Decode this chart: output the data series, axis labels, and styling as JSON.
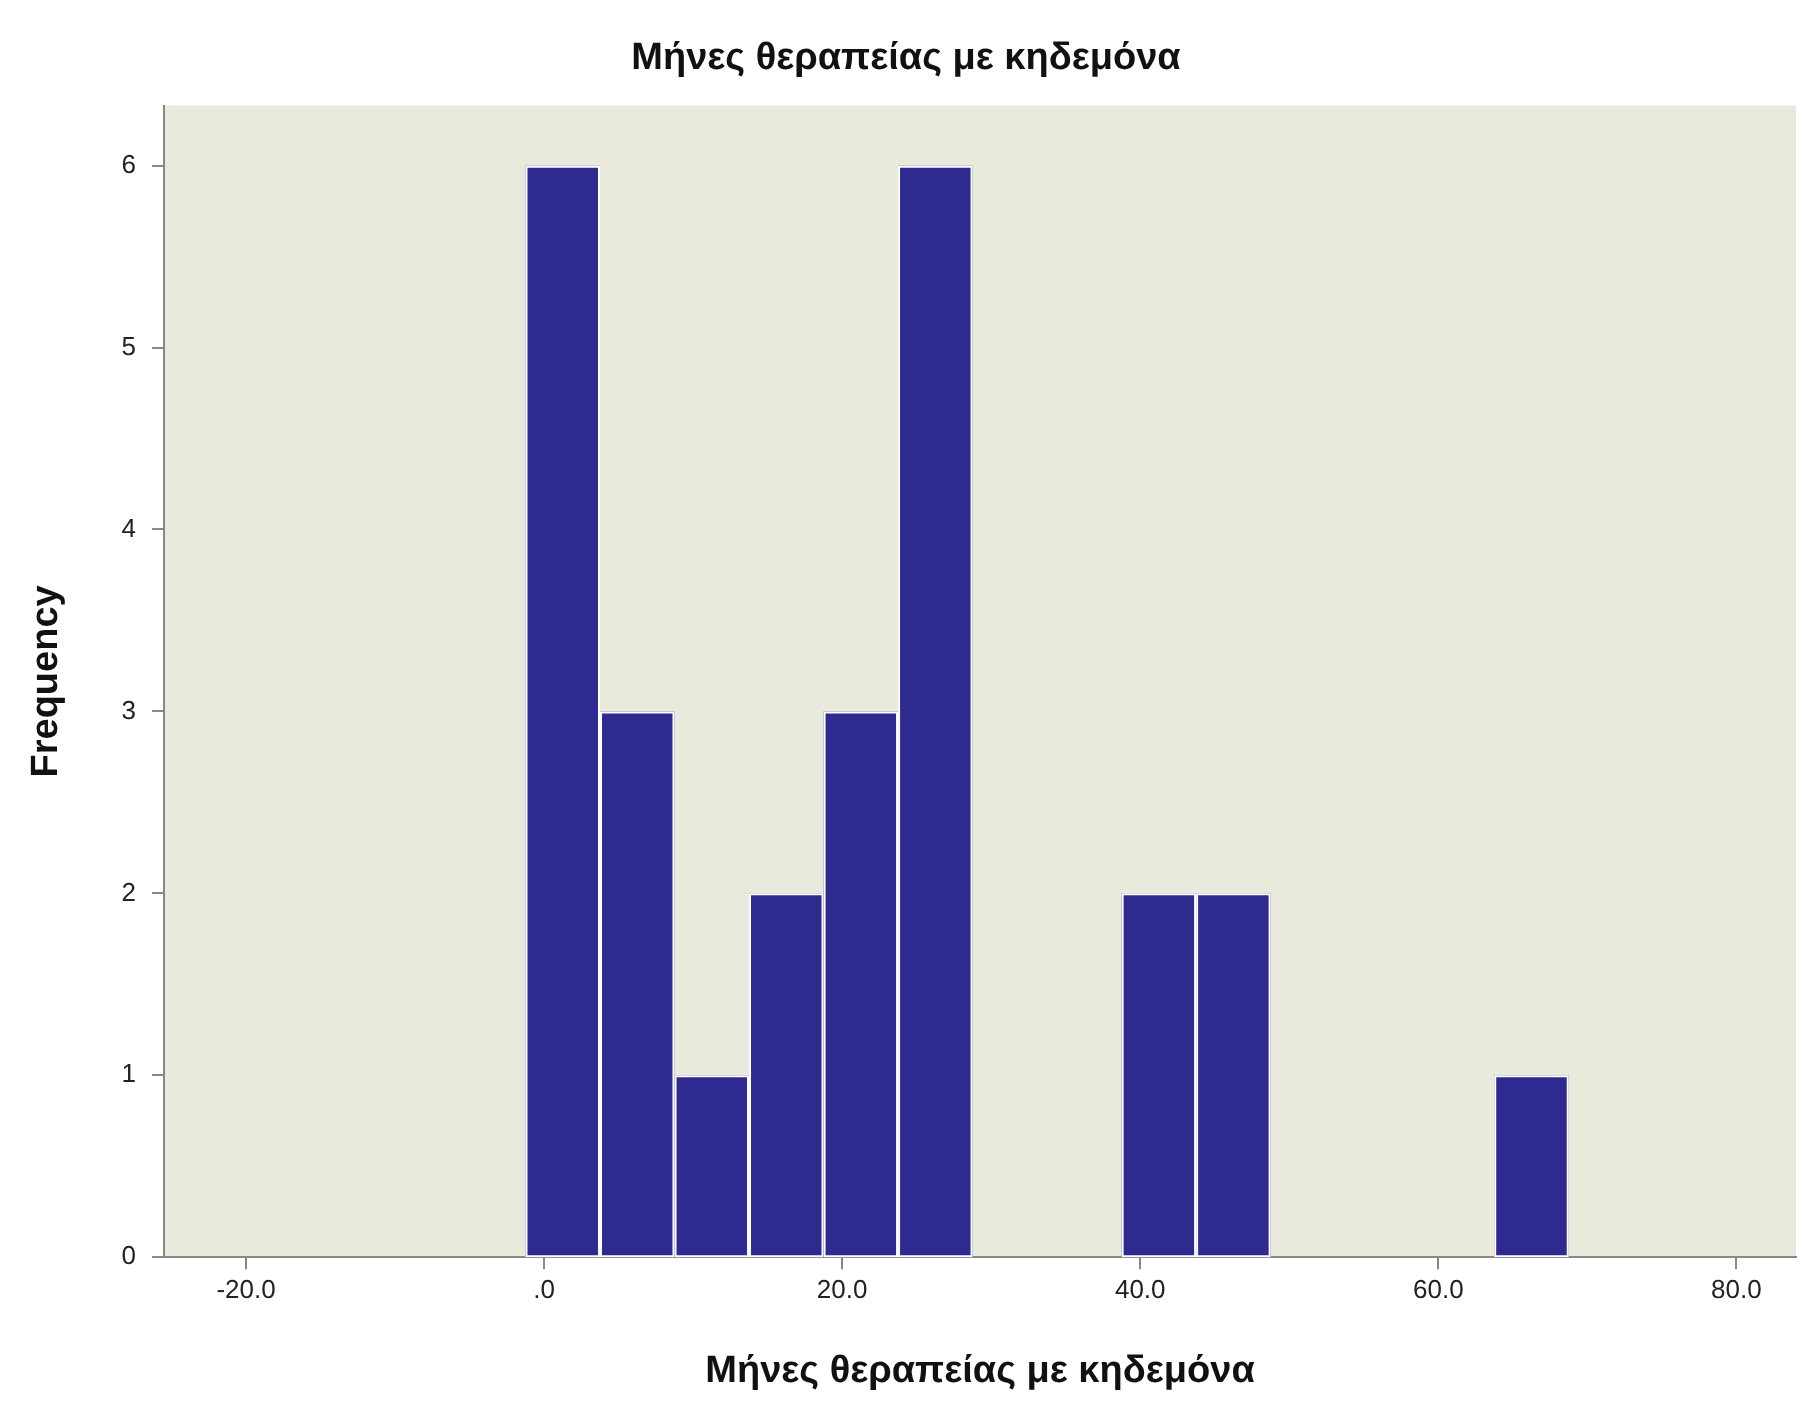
{
  "chart_data": {
    "type": "histogram",
    "title": "Μήνες θεραπείας με κηδεμόνα",
    "xlabel": "Μήνες θεραπείας με κηδεμόνα",
    "ylabel": "Frequency",
    "bins": [
      -1.25,
      3.75,
      8.75,
      13.75,
      18.75,
      23.75,
      28.75,
      33.75,
      38.75,
      43.75,
      48.75,
      53.75,
      58.75,
      63.75,
      68.75
    ],
    "values": [
      6,
      3,
      1,
      2,
      3,
      6,
      0,
      0,
      2,
      2,
      0,
      0,
      0,
      1
    ],
    "color": "#2e2a8f",
    "xlim": [
      -25.5,
      84
    ],
    "xticks": [
      {
        "value": -20,
        "label": "-20.0"
      },
      {
        "value": 0,
        "label": ".0"
      },
      {
        "value": 20,
        "label": "20.0"
      },
      {
        "value": 40,
        "label": "40.0"
      },
      {
        "value": 60,
        "label": "60.0"
      },
      {
        "value": 80,
        "label": "80.0"
      }
    ],
    "ylim": [
      0,
      6.33
    ],
    "yticks": [
      0,
      1,
      2,
      3,
      4,
      5,
      6
    ],
    "grid": false,
    "legend": false
  }
}
